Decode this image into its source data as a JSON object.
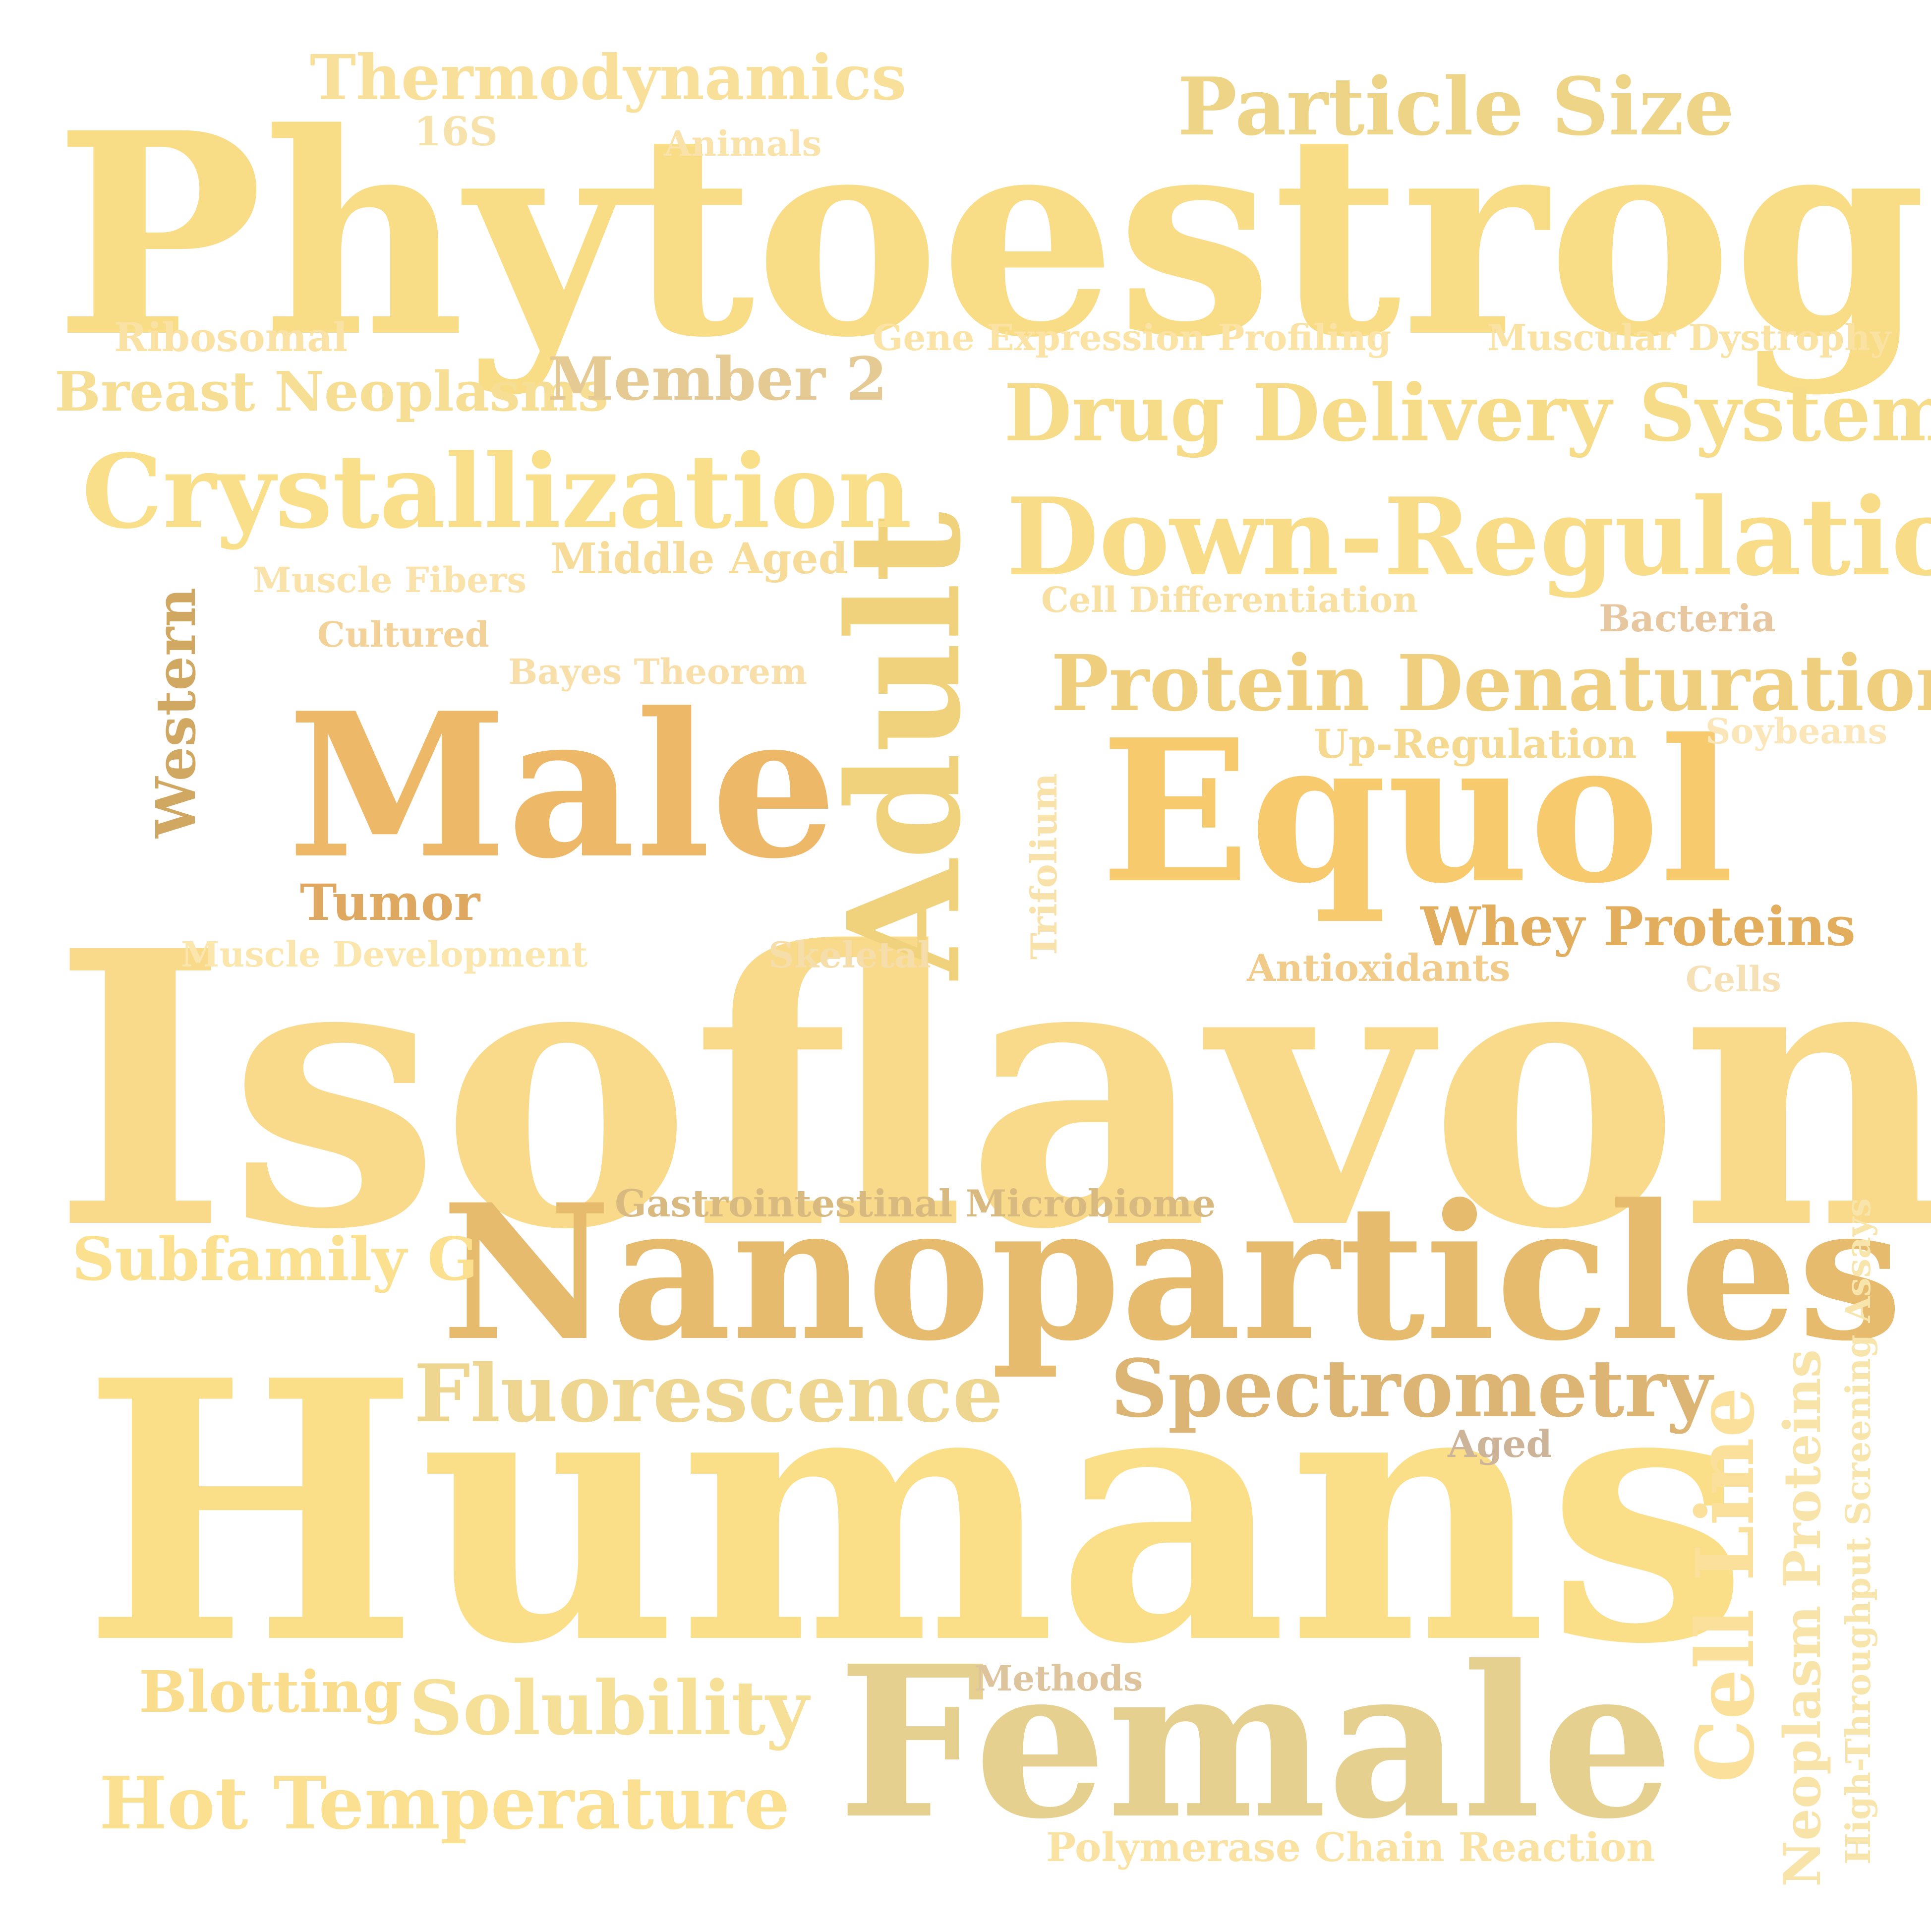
{
  "words": {
    "isoflavones": {
      "text": "Isoflavones",
      "color": "#F8DA8A"
    },
    "humans": {
      "text": "Humans",
      "color": "#FBDF88"
    },
    "phytoestrogens": {
      "text": "Phytoestrogens",
      "color": "#F9DC86"
    },
    "nanoparticles": {
      "text": "Nanoparticles",
      "color": "#E6BB6E"
    },
    "female": {
      "text": "Female",
      "color": "#E5D08F"
    },
    "male": {
      "text": "Male",
      "color": "#EDB868"
    },
    "equol": {
      "text": "Equol",
      "color": "#F8CA6E"
    },
    "adult": {
      "text": "Adult",
      "color": "#F1D27C"
    },
    "down_regulation": {
      "text": "Down-Regulation",
      "color": "#F8DC88"
    },
    "crystallization": {
      "text": "Crystallization",
      "color": "#FADF8A"
    },
    "drug_delivery": {
      "text": "Drug Delivery Systems",
      "color": "#F6DC88"
    },
    "protein_denaturation": {
      "text": "Protein Denaturation",
      "color": "#EFCE7E"
    },
    "particle_size": {
      "text": "Particle Size",
      "color": "#EDD487"
    },
    "spectrometry": {
      "text": "Spectrometry",
      "color": "#DCB473"
    },
    "fluorescence": {
      "text": "Fluorescence",
      "color": "#EED690"
    },
    "cell_line": {
      "text": "Cell Line",
      "color": "#FAE09A"
    },
    "thermodynamics": {
      "text": "Thermodynamics",
      "color": "#F8E09A"
    },
    "hot_temperature": {
      "text": "Hot Temperature",
      "color": "#FBE091"
    },
    "solubility": {
      "text": "Solubility",
      "color": "#F6E097"
    },
    "subfamily_g": {
      "text": "Subfamily G",
      "color": "#FAE08F"
    },
    "breast_neoplasms": {
      "text": "Breast Neoplasms",
      "color": "#F6DE94"
    },
    "member_2": {
      "text": "Member 2",
      "color": "#E6CA94"
    },
    "blotting": {
      "text": "Blotting",
      "color": "#F9DC8C"
    },
    "whey_proteins": {
      "text": "Whey Proteins",
      "color": "#E2AE5E"
    },
    "western": {
      "text": "Western",
      "color": "#D0A862"
    },
    "tumor": {
      "text": "Tumor",
      "color": "#DFA860"
    },
    "gastro": {
      "text": "Gastrointestinal Microbiome",
      "color": "#D8BA80"
    },
    "neoplasm_proteins": {
      "text": "Neoplasm Proteins",
      "color": "#F8E3A8"
    },
    "high_throughput": {
      "text": "High-Throughput Screening Assays",
      "color": "#F8E5AC"
    },
    "up_regulation": {
      "text": "Up-Regulation",
      "color": "#F6D990"
    },
    "middle_aged": {
      "text": "Middle Aged",
      "color": "#F6DC98"
    },
    "gene_expression": {
      "text": "Gene Expression Profiling",
      "color": "#FAE3A4"
    },
    "muscular_dystrophy": {
      "text": "Muscular Dystrophy",
      "color": "#F9E2A2"
    },
    "polymerase": {
      "text": "Polymerase Chain Reaction",
      "color": "#F9E2A2"
    },
    "ribosomal": {
      "text": "Ribosomal",
      "color": "#FAE2A4"
    },
    "cell_differentiation": {
      "text": "Cell Differentiation",
      "color": "#F8E0A3"
    },
    "bacteria": {
      "text": "Bacteria",
      "color": "#E6C7A0"
    },
    "antioxidants": {
      "text": "Antioxidants",
      "color": "#F1CB8A"
    },
    "muscle_fibers": {
      "text": "Muscle Fibers",
      "color": "#FAE3AA"
    },
    "muscle_development": {
      "text": "Muscle Development",
      "color": "#FBE6AE"
    },
    "bayes": {
      "text": "Bayes Theorem",
      "color": "#F8DFA9"
    },
    "cultured": {
      "text": "Cultured",
      "color": "#F2D299"
    },
    "trifolium": {
      "text": "Trifolium",
      "color": "#F8E2AA"
    },
    "skeletal": {
      "text": "Skeletal",
      "color": "#F6DEAA"
    },
    "animals": {
      "text": "Animals",
      "color": "#F9E3AB"
    },
    "s16": {
      "text": "16S",
      "color": "#F7E2AC"
    },
    "soybeans": {
      "text": "Soybeans",
      "color": "#FAE6B9"
    },
    "cells": {
      "text": "Cells",
      "color": "#F6E1B6"
    },
    "methods": {
      "text": "Methods",
      "color": "#DEC49C"
    },
    "aged": {
      "text": "Aged",
      "color": "#CDB498"
    }
  }
}
